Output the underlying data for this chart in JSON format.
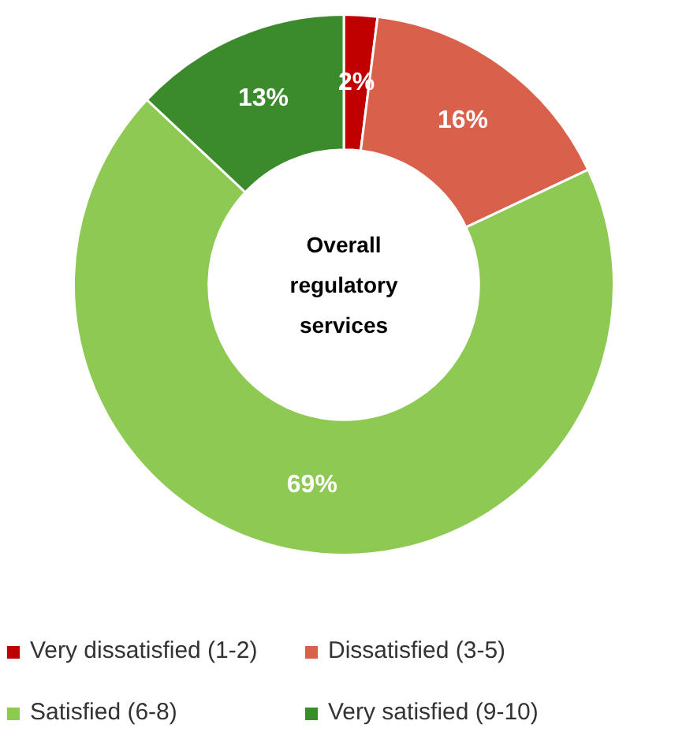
{
  "chart_data": {
    "type": "donut",
    "title": "Overall regulatory services",
    "categories": [
      "Very dissatisfied (1-2)",
      "Dissatisfied (3-5)",
      "Satisfied (6-8)",
      "Very satisfied (9-10)"
    ],
    "values": [
      2,
      16,
      69,
      13
    ],
    "colors": [
      "#c00000",
      "#d9614c",
      "#8dc953",
      "#3b8a2b"
    ],
    "value_labels": [
      "2%",
      "16%",
      "69%",
      "13%"
    ],
    "legend": "bottom"
  }
}
